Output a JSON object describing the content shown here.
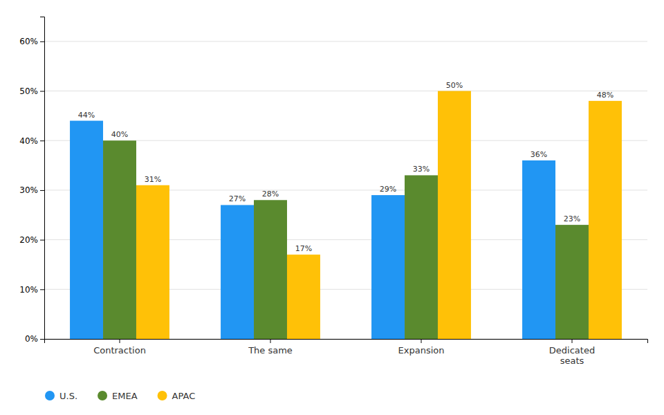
{
  "chart_data": {
    "type": "bar",
    "categories": [
      "Contraction",
      "The same",
      "Expansion",
      "Dedicated\nseats"
    ],
    "series": [
      {
        "name": "U.S.",
        "color": "#2196F3",
        "values": [
          44,
          27,
          29,
          36
        ],
        "value_labels": [
          "44%",
          "27%",
          "29%",
          "36%"
        ]
      },
      {
        "name": "EMEA",
        "color": "#5A8A2E",
        "values": [
          40,
          28,
          33,
          23
        ],
        "value_labels": [
          "40%",
          "28%",
          "33%",
          "23%"
        ]
      },
      {
        "name": "APAC",
        "color": "#FFC107",
        "values": [
          31,
          17,
          50,
          48
        ],
        "value_labels": [
          "31%",
          "17%",
          "50%",
          "48%"
        ]
      }
    ],
    "ylim": [
      0,
      65
    ],
    "yticks": [
      {
        "value": 0,
        "label": "0%"
      },
      {
        "value": 10,
        "label": "10%"
      },
      {
        "value": 20,
        "label": "20%"
      },
      {
        "value": 30,
        "label": "30%"
      },
      {
        "value": 40,
        "label": "40%"
      },
      {
        "value": 50,
        "label": "50%"
      },
      {
        "value": 60,
        "label": "60%"
      }
    ],
    "grid": true,
    "data_labels": true,
    "legend": "lower left"
  }
}
